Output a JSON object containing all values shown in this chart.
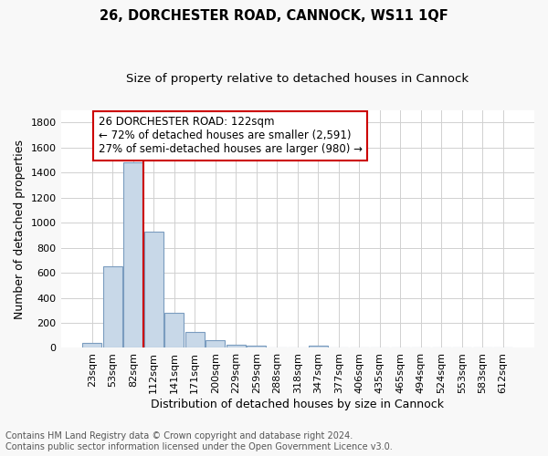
{
  "title": "26, DORCHESTER ROAD, CANNOCK, WS11 1QF",
  "subtitle": "Size of property relative to detached houses in Cannock",
  "xlabel": "Distribution of detached houses by size in Cannock",
  "ylabel": "Number of detached properties",
  "categories": [
    "23sqm",
    "53sqm",
    "82sqm",
    "112sqm",
    "141sqm",
    "171sqm",
    "200sqm",
    "229sqm",
    "259sqm",
    "288sqm",
    "318sqm",
    "347sqm",
    "377sqm",
    "406sqm",
    "435sqm",
    "465sqm",
    "494sqm",
    "524sqm",
    "553sqm",
    "583sqm",
    "612sqm"
  ],
  "values": [
    40,
    650,
    1480,
    930,
    280,
    130,
    65,
    25,
    15,
    5,
    3,
    15,
    1,
    0,
    0,
    0,
    0,
    0,
    0,
    0,
    0
  ],
  "red_line_x": 3,
  "highlight_color": "#cc0000",
  "bar_color": "#c8d8e8",
  "bar_edge_color": "#7a9cbf",
  "annotation_box_text": "26 DORCHESTER ROAD: 122sqm\n← 72% of detached houses are smaller (2,591)\n27% of semi-detached houses are larger (980) →",
  "ylim": [
    0,
    1900
  ],
  "yticks": [
    0,
    200,
    400,
    600,
    800,
    1000,
    1200,
    1400,
    1600,
    1800
  ],
  "footer_line1": "Contains HM Land Registry data © Crown copyright and database right 2024.",
  "footer_line2": "Contains public sector information licensed under the Open Government Licence v3.0.",
  "background_color": "#f8f8f8",
  "plot_bg_color": "#ffffff",
  "grid_color": "#d0d0d0",
  "title_fontsize": 10.5,
  "subtitle_fontsize": 9.5,
  "axis_label_fontsize": 9,
  "tick_fontsize": 8,
  "footer_fontsize": 7,
  "annot_fontsize": 8.5
}
